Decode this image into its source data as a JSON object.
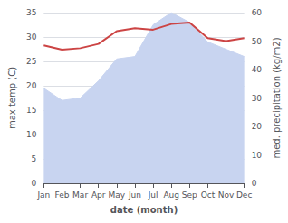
{
  "chart_data": {
    "type": "line",
    "xlabel": "date (month)",
    "ylabel": "max temp (C)",
    "y2label": "med. precipitation (kg/m2)",
    "categories": [
      "Jan",
      "Feb",
      "Mar",
      "Apr",
      "May",
      "Jun",
      "Jul",
      "Aug",
      "Sep",
      "Oct",
      "Nov",
      "Dec"
    ],
    "series": [
      {
        "type": "area",
        "color": "#c8d4f0",
        "values": [
          19.5,
          17.0,
          17.5,
          21.0,
          25.5,
          26.0,
          32.5,
          35.0,
          33.0,
          29.0,
          27.5,
          26.0
        ]
      },
      {
        "type": "line",
        "color": "#cc4444",
        "axis": "y2",
        "values": [
          48.5,
          47.0,
          47.5,
          49.0,
          53.5,
          54.5,
          54.0,
          56.0,
          56.5,
          51.0,
          50.0,
          51.0
        ]
      }
    ],
    "ylim": [
      0,
      35
    ],
    "yticks": [
      0,
      5,
      10,
      15,
      20,
      25,
      30,
      35
    ],
    "y2lim": [
      0,
      60
    ],
    "y2ticks": [
      0,
      10,
      20,
      30,
      40,
      50,
      60
    ],
    "grid": true
  }
}
